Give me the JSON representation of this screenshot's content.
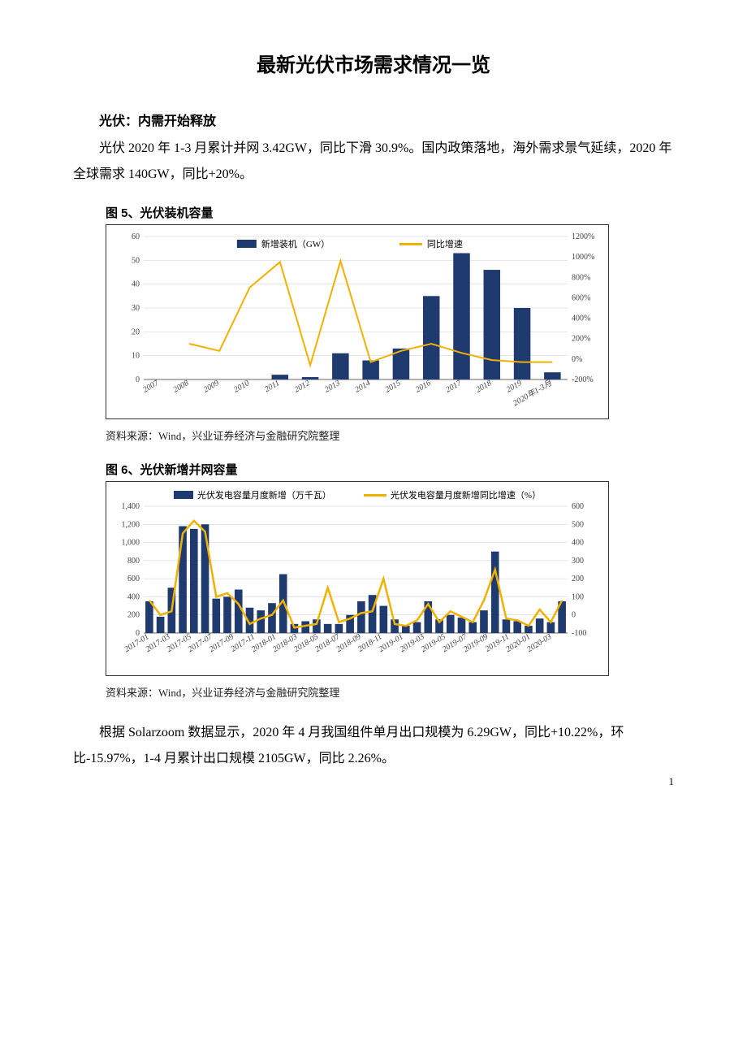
{
  "title": "最新光伏市场需求情况一览",
  "section_head": "光伏：内需开始释放",
  "para1": "光伏 2020 年 1-3 月累计并网 3.42GW，同比下滑 30.9%。国内政策落地，海外需求景气延续，2020 年全球需求 140GW，同比+20%。",
  "para2": "根据 Solarzoom 数据显示，2020 年 4 月我国组件单月出口规模为 6.29GW，同比+10.22%，环比-15.97%，1-4 月累计出口规模 2105GW，同比 2.26%。",
  "page_number": "1",
  "fig5": {
    "title": "图 5、光伏装机容量",
    "source": "资料来源：Wind，兴业证券经济与金融研究院整理",
    "legend": {
      "bar": "新增装机（GW）",
      "line": "同比增速"
    },
    "categories": [
      "2007",
      "2008",
      "2009",
      "2010",
      "2011",
      "2012",
      "2013",
      "2014",
      "2015",
      "2016",
      "2017",
      "2018",
      "2019",
      "2020年1-3月"
    ],
    "bar_values": [
      0,
      0,
      0,
      0,
      2,
      1,
      11,
      8,
      13,
      35,
      53,
      46,
      30,
      3
    ],
    "line_values": [
      null,
      150,
      80,
      700,
      950,
      -60,
      960,
      -30,
      80,
      150,
      60,
      -10,
      -30,
      -30
    ],
    "left_axis": {
      "min": 0,
      "max": 60,
      "step": 10
    },
    "right_axis": {
      "min": -200,
      "max": 1200,
      "step": 200,
      "suffix": "%"
    },
    "colors": {
      "bar": "#1f3a6e",
      "line": "#f2b100",
      "grid": "#cccccc",
      "axis": "#666666",
      "bg": "#ffffff"
    },
    "fontsize_tick": 10,
    "fontsize_legend": 11,
    "line_width": 2,
    "bar_width": 0.55
  },
  "fig6": {
    "title": "图 6、光伏新增并网容量",
    "source": "资料来源：Wind，兴业证券经济与金融研究院整理",
    "legend": {
      "bar": "光伏发电容量月度新增（万千瓦）",
      "line": "光伏发电容量月度新增同比增速（%）"
    },
    "categories": [
      "2017-01",
      "2017-03",
      "2017-05",
      "2017-07",
      "2017-09",
      "2017-11",
      "2018-01",
      "2018-03",
      "2018-05",
      "2018-07",
      "2018-09",
      "2018-11",
      "2019-01",
      "2019-03",
      "2019-05",
      "2019-07",
      "2019-09",
      "2019-11",
      "2020-01",
      "2020-03"
    ],
    "bar_values": [
      350,
      180,
      500,
      1180,
      1150,
      1200,
      380,
      400,
      480,
      280,
      250,
      330,
      650,
      100,
      130,
      150,
      100,
      100,
      200,
      350,
      420,
      300,
      150,
      80,
      120,
      350,
      150,
      200,
      170,
      120,
      250,
      900,
      150,
      130,
      80,
      160,
      120,
      350
    ],
    "line_values": [
      80,
      0,
      20,
      450,
      520,
      460,
      100,
      120,
      60,
      -50,
      -20,
      0,
      80,
      -70,
      -60,
      -50,
      150,
      -40,
      -20,
      10,
      20,
      200,
      -50,
      -60,
      -30,
      60,
      -40,
      20,
      -10,
      -40,
      80,
      250,
      -20,
      -30,
      -60,
      30,
      -40,
      80
    ],
    "left_axis": {
      "min": 0,
      "max": 1400,
      "step": 200
    },
    "right_axis": {
      "min": -100,
      "max": 600,
      "step": 100
    },
    "colors": {
      "bar": "#1f3a6e",
      "line": "#f2b100",
      "grid": "#cccccc",
      "axis": "#666666",
      "bg": "#ffffff"
    },
    "fontsize_tick": 9,
    "fontsize_legend": 10,
    "line_width": 2.5,
    "bar_width": 0.7
  }
}
